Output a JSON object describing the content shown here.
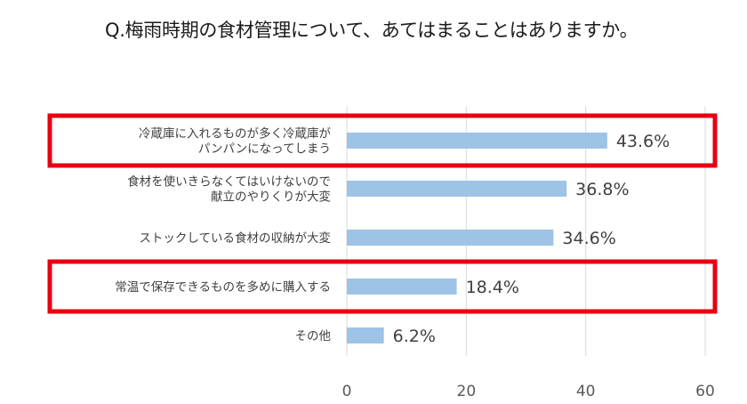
{
  "chart_data": {
    "type": "bar",
    "orientation": "horizontal",
    "title": "Q.梅雨時期の食材管理について、あてはまることはありますか。",
    "categories": [
      [
        "冷蔵庫に入れるものが多く冷蔵庫が",
        "パンパンになってしまう"
      ],
      [
        "食材を使いきらなくてはいけないので",
        "献立のやりくりが大変"
      ],
      [
        "ストックしている食材の収納が大変"
      ],
      [
        "常温で保存できるものを多めに購入する"
      ],
      [
        "その他"
      ]
    ],
    "values": [
      43.6,
      36.8,
      34.6,
      18.4,
      6.2
    ],
    "value_labels": [
      "43.6%",
      "36.8%",
      "34.6%",
      "18.4%",
      "6.2%"
    ],
    "xlim": [
      0,
      60
    ],
    "xticks": [
      0,
      20,
      40,
      60
    ],
    "grid": "vertical",
    "bar_color": "#9dc3e6",
    "highlighted_categories": [
      0,
      3
    ],
    "highlight_color": "#e60012"
  }
}
